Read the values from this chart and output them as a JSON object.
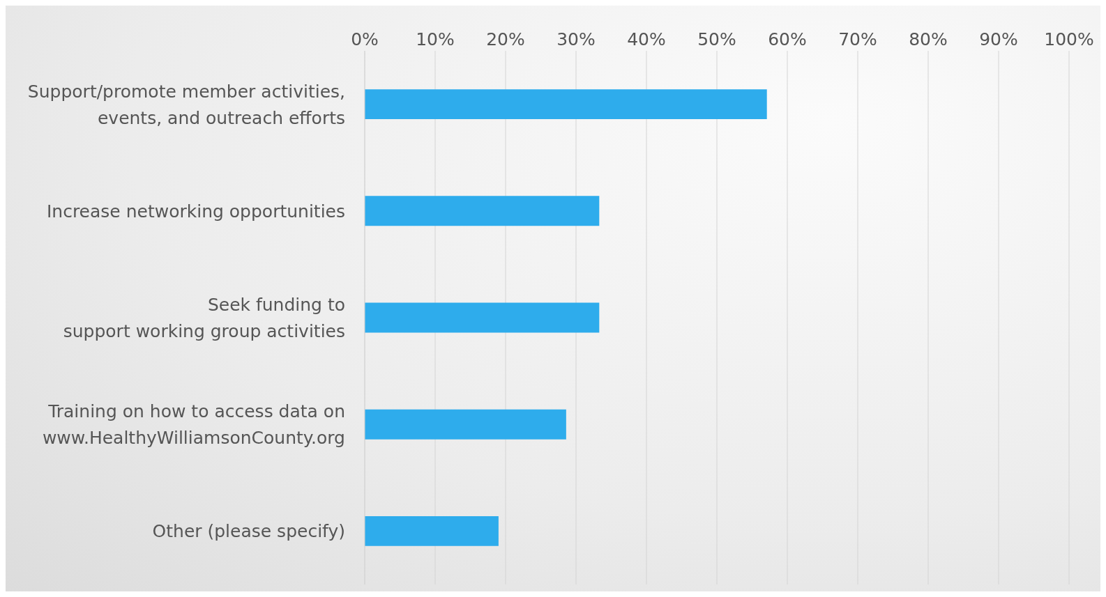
{
  "chart_data": {
    "type": "bar",
    "orientation": "horizontal",
    "categories": [
      "Support/promote member activities,\nevents, and outreach efforts",
      "Increase networking opportunities",
      "Seek funding to\nsupport working group activities",
      "Training on how to access data on\nwww.HealthyWilliamsonCounty.org",
      "Other (please specify)"
    ],
    "values": [
      57.1,
      33.3,
      33.3,
      28.6,
      19.0
    ],
    "color": "#2eacec",
    "xlim": [
      0,
      100
    ],
    "xticks": [
      {
        "value": 0,
        "label": "0%"
      },
      {
        "value": 10,
        "label": "10%"
      },
      {
        "value": 20,
        "label": "20%"
      },
      {
        "value": 30,
        "label": "30%"
      },
      {
        "value": 40,
        "label": "40%"
      },
      {
        "value": 50,
        "label": "50%"
      },
      {
        "value": 60,
        "label": "60%"
      },
      {
        "value": 70,
        "label": "70%"
      },
      {
        "value": 80,
        "label": "80%"
      },
      {
        "value": 90,
        "label": "90%"
      },
      {
        "value": 100,
        "label": "100%"
      }
    ],
    "grid": "x"
  }
}
